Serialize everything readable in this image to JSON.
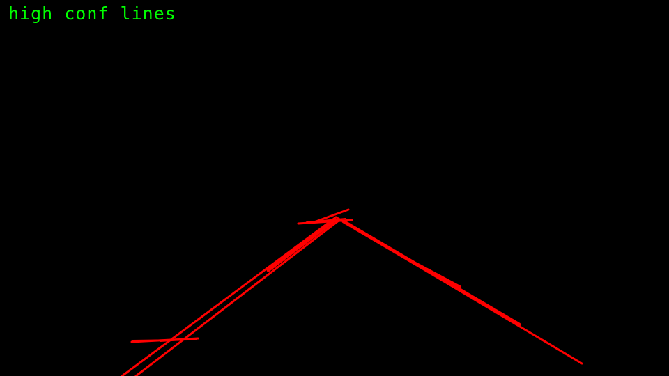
{
  "overlay": {
    "label": "high conf lines",
    "label_color": "#00ff00"
  },
  "background_color": "#000000",
  "line_color": "#ff0000"
}
